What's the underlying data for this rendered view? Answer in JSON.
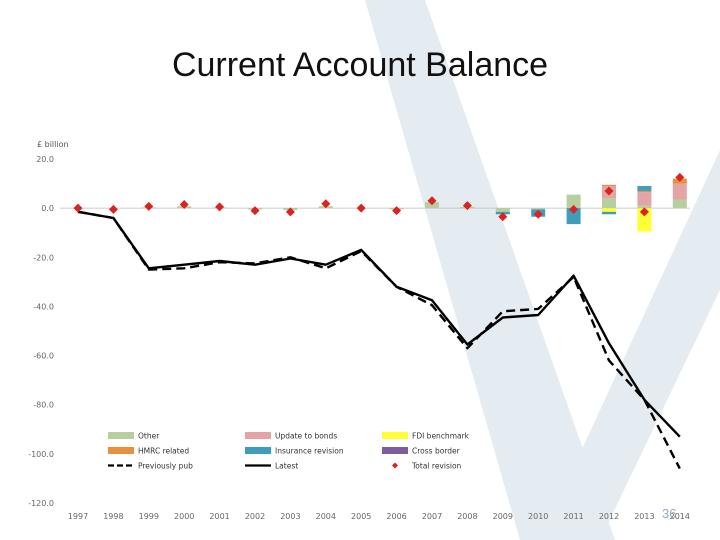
{
  "slide": {
    "title": "Current Account Balance",
    "page_number": "36"
  },
  "colors": {
    "background_watermark": "#e4ecf1",
    "other": "#b5cf9e",
    "update_to_bonds": "#e4a4a6",
    "fdi_benchmark": "#ffff33",
    "hmrc_related": "#e8913a",
    "insurance_revision": "#3e9dbb",
    "cross_border": "#7d5d9c",
    "previously_pub": "#000000",
    "latest": "#000000",
    "total_revision": "#dd2222"
  },
  "chart_data": {
    "type": "bar",
    "subtype": "stacked bar with line overlay",
    "unit_label": "£ billion",
    "categories": [
      "1997",
      "1998",
      "1999",
      "2000",
      "2001",
      "2002",
      "2003",
      "2004",
      "2005",
      "2006",
      "2007",
      "2008",
      "2009",
      "2010",
      "2011",
      "2012",
      "2013",
      "2014"
    ],
    "ylim": [
      -120,
      20
    ],
    "yticks": [
      "20.0",
      "0.0",
      "-20.0",
      "-40.0",
      "-60.0",
      "-80.0",
      "-100.0",
      "-120.0"
    ],
    "ytick_values": [
      20,
      0,
      -20,
      -40,
      -60,
      -80,
      -100,
      -120
    ],
    "grid": false,
    "legend_position": "bottom",
    "series": [
      {
        "name": "Other",
        "kind": "bar",
        "color_key": "other",
        "values": [
          0,
          0,
          0.3,
          0.8,
          0.3,
          -0.5,
          -0.8,
          0.8,
          0,
          -0.5,
          2.5,
          0.5,
          -1.5,
          -0.5,
          5.5,
          4.0,
          1.0,
          3.5
        ]
      },
      {
        "name": "Update to bonds",
        "kind": "bar",
        "color_key": "update_to_bonds",
        "values": [
          0,
          0,
          0,
          0,
          0,
          0,
          0,
          0,
          0,
          0,
          0,
          0,
          0,
          0,
          0,
          5.0,
          5.5,
          6.5
        ]
      },
      {
        "name": "FDI benchmark",
        "kind": "bar",
        "color_key": "fdi_benchmark",
        "values": [
          0,
          0,
          0,
          0,
          0,
          0,
          0,
          0,
          0,
          0,
          0,
          0,
          0,
          0,
          0,
          -1.5,
          -9.5,
          0
        ]
      },
      {
        "name": "HMRC related",
        "kind": "bar",
        "color_key": "hmrc_related",
        "values": [
          0,
          0,
          0,
          0,
          0,
          0,
          0,
          0,
          0,
          0,
          0,
          0,
          0,
          0,
          0,
          0.5,
          0.5,
          2.0
        ]
      },
      {
        "name": "Insurance revision",
        "kind": "bar",
        "color_key": "insurance_revision",
        "values": [
          0,
          0,
          0,
          0,
          0,
          0,
          0,
          0,
          0,
          0,
          0,
          0,
          -1.0,
          -3.0,
          -6.5,
          -1.0,
          2.0,
          0
        ]
      },
      {
        "name": "Cross border",
        "kind": "bar",
        "color_key": "cross_border",
        "values": [
          0,
          0,
          0,
          0,
          0,
          0,
          0,
          0,
          0,
          0,
          0,
          0,
          0,
          0,
          0,
          0,
          0,
          0
        ]
      },
      {
        "name": "Previously pub",
        "kind": "line",
        "dashed": true,
        "color_key": "previously_pub",
        "values": [
          -1.5,
          -4.0,
          -25.0,
          -24.5,
          -22.0,
          -22.5,
          -20.0,
          -24.5,
          -17.5,
          -32.0,
          -39.5,
          -57.0,
          -42.0,
          -41.0,
          -28.0,
          -62.0,
          -78.0,
          -106.0
        ]
      },
      {
        "name": "Latest",
        "kind": "line",
        "dashed": false,
        "color_key": "latest",
        "values": [
          -1.5,
          -4.0,
          -24.5,
          -23.0,
          -21.5,
          -23.0,
          -20.5,
          -23.0,
          -17.0,
          -32.0,
          -37.5,
          -55.5,
          -44.5,
          -43.5,
          -27.5,
          -55.0,
          -78.0,
          -93.0
        ]
      },
      {
        "name": "Total revision",
        "kind": "marker",
        "color_key": "total_revision",
        "values": [
          0,
          -0.5,
          0.7,
          1.5,
          0.5,
          -1.0,
          -1.5,
          1.8,
          0,
          -1.0,
          3.0,
          1.0,
          -3.5,
          -2.5,
          -0.5,
          7.0,
          -1.5,
          12.5
        ]
      }
    ],
    "legend": [
      {
        "label": "Other",
        "series": 0,
        "symbol": "box"
      },
      {
        "label": "Update to bonds",
        "series": 1,
        "symbol": "box"
      },
      {
        "label": "FDI benchmark",
        "series": 2,
        "symbol": "box"
      },
      {
        "label": "HMRC related",
        "series": 3,
        "symbol": "box"
      },
      {
        "label": "Insurance revision",
        "series": 4,
        "symbol": "box"
      },
      {
        "label": "Cross border",
        "series": 5,
        "symbol": "box"
      },
      {
        "label": "Previously pub",
        "series": 6,
        "symbol": "dash"
      },
      {
        "label": "Latest",
        "series": 7,
        "symbol": "line"
      },
      {
        "label": "Total revision",
        "series": 8,
        "symbol": "marker"
      }
    ]
  }
}
